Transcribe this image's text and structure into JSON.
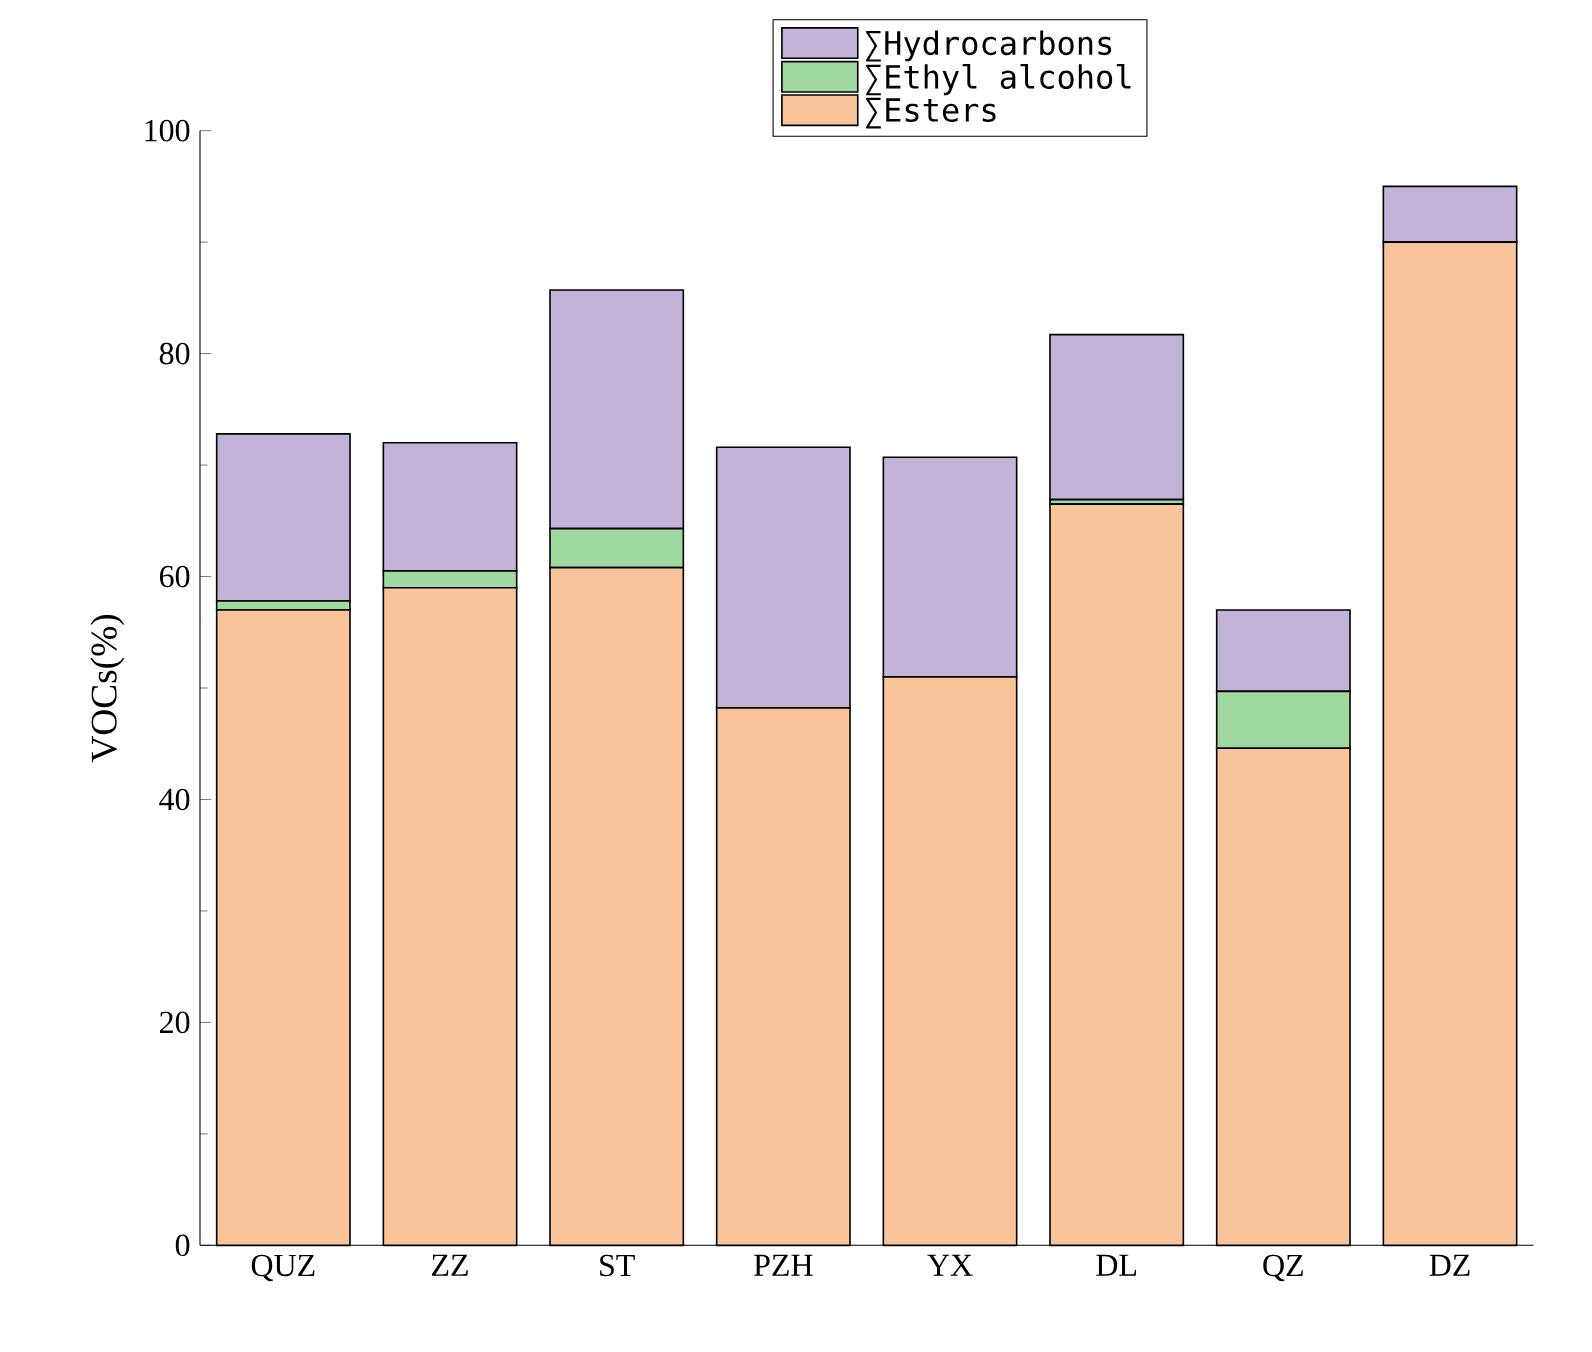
{
  "chart_data": {
    "type": "bar",
    "stacked": true,
    "ylabel": "VOCs(%)",
    "categories": [
      "QUZ",
      "ZZ",
      "ST",
      "PZH",
      "YX",
      "DL",
      "QZ",
      "DZ"
    ],
    "series": [
      {
        "name": "∑Esters",
        "color": "#f9c49a",
        "values": [
          57,
          59,
          60.8,
          48.2,
          51,
          66.5,
          44.6,
          90
        ]
      },
      {
        "name": "∑Ethyl alcohol",
        "color": "#a0d9a0",
        "values": [
          0.8,
          1.5,
          3.5,
          0,
          0,
          0.4,
          5.1,
          0
        ]
      },
      {
        "name": "∑Hydrocarbons",
        "color": "#c3b3d9",
        "values": [
          15,
          11.5,
          21.4,
          23.4,
          19.7,
          14.8,
          7.3,
          5
        ]
      }
    ],
    "ylim": [
      0,
      100
    ],
    "yticks": [
      0,
      20,
      40,
      60,
      80,
      100
    ],
    "legend": "top"
  }
}
